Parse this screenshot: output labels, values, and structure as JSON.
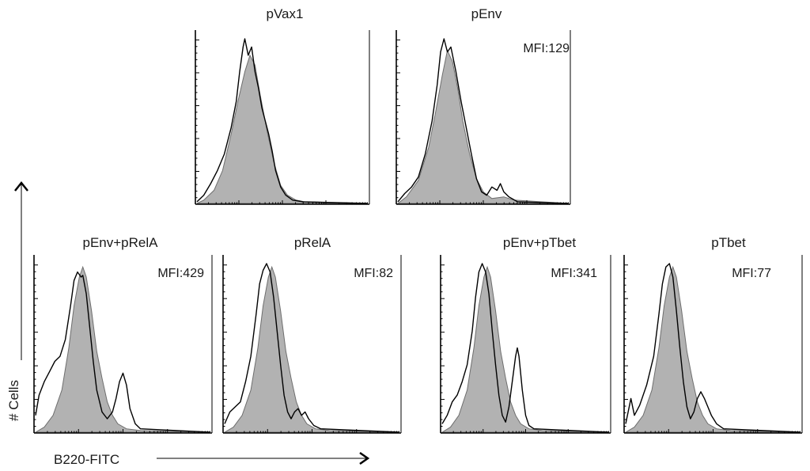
{
  "figure": {
    "ylabel": "# Cells",
    "xlabel": "B220-FITC"
  },
  "chart_data": [
    {
      "type": "area",
      "title": "pVax1",
      "mfi": "",
      "series": [
        {
          "style": "shaded",
          "points": [
            [
              0,
              0
            ],
            [
              4,
              0.02
            ],
            [
              10,
              0.08
            ],
            [
              15,
              0.2
            ],
            [
              20,
              0.42
            ],
            [
              24,
              0.62
            ],
            [
              28,
              0.8
            ],
            [
              31,
              0.9
            ],
            [
              34,
              0.84
            ],
            [
              37,
              0.66
            ],
            [
              41,
              0.44
            ],
            [
              45,
              0.25
            ],
            [
              49,
              0.11
            ],
            [
              53,
              0.05
            ],
            [
              58,
              0.02
            ],
            [
              63,
              0.01
            ],
            [
              100,
              0
            ]
          ]
        },
        {
          "style": "open",
          "points": [
            [
              0,
              0.01
            ],
            [
              4,
              0.05
            ],
            [
              8,
              0.12
            ],
            [
              12,
              0.2
            ],
            [
              16,
              0.3
            ],
            [
              20,
              0.46
            ],
            [
              23,
              0.62
            ],
            [
              25,
              0.8
            ],
            [
              27,
              0.95
            ],
            [
              28,
              1.0
            ],
            [
              30,
              0.9
            ],
            [
              32,
              0.95
            ],
            [
              34,
              0.8
            ],
            [
              36,
              0.7
            ],
            [
              38,
              0.58
            ],
            [
              40,
              0.5
            ],
            [
              42,
              0.42
            ],
            [
              44,
              0.32
            ],
            [
              46,
              0.2
            ],
            [
              49,
              0.1
            ],
            [
              52,
              0.05
            ],
            [
              56,
              0.02
            ],
            [
              62,
              0.01
            ],
            [
              100,
              0
            ]
          ]
        }
      ]
    },
    {
      "type": "area",
      "title": "pEnv",
      "mfi": "MFI:129",
      "series": [
        {
          "style": "shaded",
          "points": [
            [
              0,
              0
            ],
            [
              5,
              0.04
            ],
            [
              12,
              0.14
            ],
            [
              18,
              0.34
            ],
            [
              22,
              0.55
            ],
            [
              26,
              0.78
            ],
            [
              29,
              0.93
            ],
            [
              32,
              0.86
            ],
            [
              35,
              0.7
            ],
            [
              38,
              0.5
            ],
            [
              42,
              0.3
            ],
            [
              46,
              0.15
            ],
            [
              50,
              0.07
            ],
            [
              55,
              0.03
            ],
            [
              62,
              0.04
            ],
            [
              68,
              0.02
            ],
            [
              100,
              0
            ]
          ]
        },
        {
          "style": "open",
          "points": [
            [
              0,
              0.01
            ],
            [
              4,
              0.06
            ],
            [
              8,
              0.1
            ],
            [
              12,
              0.16
            ],
            [
              16,
              0.3
            ],
            [
              20,
              0.5
            ],
            [
              23,
              0.72
            ],
            [
              25,
              0.92
            ],
            [
              27,
              1.0
            ],
            [
              29,
              0.92
            ],
            [
              31,
              0.95
            ],
            [
              34,
              0.8
            ],
            [
              37,
              0.62
            ],
            [
              40,
              0.46
            ],
            [
              43,
              0.3
            ],
            [
              46,
              0.15
            ],
            [
              49,
              0.07
            ],
            [
              52,
              0.05
            ],
            [
              55,
              0.1
            ],
            [
              58,
              0.08
            ],
            [
              60,
              0.12
            ],
            [
              62,
              0.07
            ],
            [
              65,
              0.04
            ],
            [
              70,
              0.01
            ],
            [
              100,
              0
            ]
          ]
        }
      ]
    },
    {
      "type": "area",
      "title": "pEnv+pRelA",
      "mfi": "MFI:429",
      "series": [
        {
          "style": "shaded",
          "points": [
            [
              0,
              0
            ],
            [
              5,
              0.03
            ],
            [
              10,
              0.1
            ],
            [
              15,
              0.25
            ],
            [
              19,
              0.5
            ],
            [
              22,
              0.75
            ],
            [
              25,
              0.92
            ],
            [
              27,
              0.98
            ],
            [
              29,
              0.92
            ],
            [
              32,
              0.72
            ],
            [
              35,
              0.48
            ],
            [
              38,
              0.32
            ],
            [
              41,
              0.18
            ],
            [
              44,
              0.1
            ],
            [
              47,
              0.05
            ],
            [
              52,
              0.02
            ],
            [
              60,
              0.01
            ],
            [
              100,
              0
            ]
          ]
        },
        {
          "style": "open",
          "points": [
            [
              0,
              0.1
            ],
            [
              2,
              0.22
            ],
            [
              5,
              0.3
            ],
            [
              8,
              0.36
            ],
            [
              11,
              0.42
            ],
            [
              14,
              0.45
            ],
            [
              17,
              0.55
            ],
            [
              20,
              0.75
            ],
            [
              22,
              0.9
            ],
            [
              24,
              0.95
            ],
            [
              26,
              0.92
            ],
            [
              27,
              0.93
            ],
            [
              29,
              0.82
            ],
            [
              31,
              0.62
            ],
            [
              33,
              0.42
            ],
            [
              35,
              0.25
            ],
            [
              38,
              0.12
            ],
            [
              41,
              0.08
            ],
            [
              44,
              0.12
            ],
            [
              46,
              0.2
            ],
            [
              48,
              0.3
            ],
            [
              50,
              0.35
            ],
            [
              52,
              0.28
            ],
            [
              54,
              0.14
            ],
            [
              57,
              0.05
            ],
            [
              60,
              0.02
            ],
            [
              100,
              0
            ]
          ]
        }
      ]
    },
    {
      "type": "area",
      "title": "pRelA",
      "mfi": "MFI:82",
      "series": [
        {
          "style": "shaded",
          "points": [
            [
              0,
              0
            ],
            [
              5,
              0.03
            ],
            [
              10,
              0.1
            ],
            [
              15,
              0.25
            ],
            [
              19,
              0.5
            ],
            [
              22,
              0.75
            ],
            [
              25,
              0.92
            ],
            [
              27,
              0.98
            ],
            [
              29,
              0.92
            ],
            [
              32,
              0.72
            ],
            [
              35,
              0.48
            ],
            [
              38,
              0.32
            ],
            [
              41,
              0.18
            ],
            [
              44,
              0.1
            ],
            [
              47,
              0.05
            ],
            [
              52,
              0.02
            ],
            [
              60,
              0.01
            ],
            [
              100,
              0
            ]
          ]
        },
        {
          "style": "open",
          "points": [
            [
              0,
              0.05
            ],
            [
              3,
              0.12
            ],
            [
              6,
              0.15
            ],
            [
              9,
              0.18
            ],
            [
              12,
              0.3
            ],
            [
              15,
              0.45
            ],
            [
              18,
              0.7
            ],
            [
              20,
              0.88
            ],
            [
              22,
              0.96
            ],
            [
              24,
              1.0
            ],
            [
              26,
              0.95
            ],
            [
              28,
              0.8
            ],
            [
              30,
              0.6
            ],
            [
              32,
              0.4
            ],
            [
              34,
              0.22
            ],
            [
              36,
              0.12
            ],
            [
              38,
              0.08
            ],
            [
              40,
              0.12
            ],
            [
              42,
              0.14
            ],
            [
              44,
              0.1
            ],
            [
              46,
              0.12
            ],
            [
              48,
              0.08
            ],
            [
              51,
              0.04
            ],
            [
              55,
              0.02
            ],
            [
              100,
              0
            ]
          ]
        }
      ]
    },
    {
      "type": "area",
      "title": "pEnv+pTbet",
      "mfi": "MFI:341",
      "series": [
        {
          "style": "shaded",
          "points": [
            [
              0,
              0
            ],
            [
              5,
              0.03
            ],
            [
              10,
              0.1
            ],
            [
              15,
              0.25
            ],
            [
              19,
              0.5
            ],
            [
              22,
              0.75
            ],
            [
              25,
              0.92
            ],
            [
              27,
              0.98
            ],
            [
              29,
              0.92
            ],
            [
              32,
              0.72
            ],
            [
              35,
              0.48
            ],
            [
              38,
              0.32
            ],
            [
              41,
              0.18
            ],
            [
              44,
              0.1
            ],
            [
              47,
              0.05
            ],
            [
              52,
              0.02
            ],
            [
              60,
              0.01
            ],
            [
              100,
              0
            ]
          ]
        },
        {
          "style": "open",
          "points": [
            [
              0,
              0.05
            ],
            [
              3,
              0.1
            ],
            [
              6,
              0.18
            ],
            [
              9,
              0.22
            ],
            [
              12,
              0.3
            ],
            [
              15,
              0.4
            ],
            [
              18,
              0.6
            ],
            [
              20,
              0.8
            ],
            [
              22,
              0.95
            ],
            [
              24,
              1.0
            ],
            [
              26,
              0.95
            ],
            [
              28,
              0.82
            ],
            [
              30,
              0.6
            ],
            [
              32,
              0.4
            ],
            [
              34,
              0.22
            ],
            [
              36,
              0.1
            ],
            [
              38,
              0.06
            ],
            [
              40,
              0.15
            ],
            [
              42,
              0.3
            ],
            [
              44,
              0.45
            ],
            [
              45,
              0.5
            ],
            [
              46,
              0.45
            ],
            [
              48,
              0.25
            ],
            [
              50,
              0.1
            ],
            [
              52,
              0.04
            ],
            [
              55,
              0.02
            ],
            [
              100,
              0
            ]
          ]
        }
      ]
    },
    {
      "type": "area",
      "title": "pTbet",
      "mfi": "MFI:77",
      "series": [
        {
          "style": "shaded",
          "points": [
            [
              0,
              0
            ],
            [
              5,
              0.03
            ],
            [
              10,
              0.1
            ],
            [
              15,
              0.25
            ],
            [
              19,
              0.5
            ],
            [
              22,
              0.75
            ],
            [
              25,
              0.92
            ],
            [
              27,
              0.98
            ],
            [
              29,
              0.92
            ],
            [
              32,
              0.72
            ],
            [
              35,
              0.48
            ],
            [
              38,
              0.32
            ],
            [
              41,
              0.18
            ],
            [
              44,
              0.1
            ],
            [
              47,
              0.05
            ],
            [
              52,
              0.02
            ],
            [
              60,
              0.01
            ],
            [
              100,
              0
            ]
          ]
        },
        {
          "style": "open",
          "points": [
            [
              0,
              0.05
            ],
            [
              3,
              0.2
            ],
            [
              5,
              0.1
            ],
            [
              8,
              0.16
            ],
            [
              12,
              0.28
            ],
            [
              16,
              0.45
            ],
            [
              19,
              0.7
            ],
            [
              21,
              0.88
            ],
            [
              23,
              0.98
            ],
            [
              25,
              1.0
            ],
            [
              27,
              0.92
            ],
            [
              29,
              0.72
            ],
            [
              31,
              0.5
            ],
            [
              33,
              0.3
            ],
            [
              35,
              0.15
            ],
            [
              37,
              0.08
            ],
            [
              39,
              0.12
            ],
            [
              41,
              0.2
            ],
            [
              43,
              0.24
            ],
            [
              45,
              0.2
            ],
            [
              47,
              0.15
            ],
            [
              49,
              0.1
            ],
            [
              52,
              0.05
            ],
            [
              56,
              0.02
            ],
            [
              100,
              0
            ]
          ]
        }
      ]
    }
  ]
}
